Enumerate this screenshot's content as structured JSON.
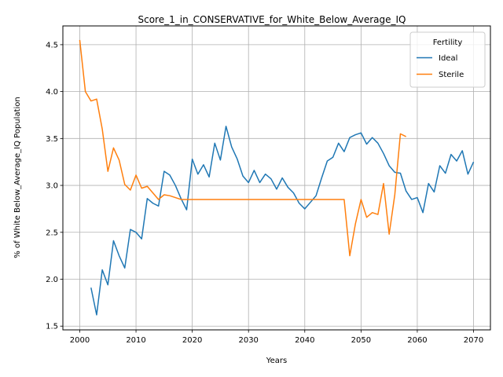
{
  "chart_data": {
    "type": "line",
    "title": "Score_1_in_CONSERVATIVE_for_White_Below_Average_IQ",
    "xlabel": "Years",
    "ylabel": "% of White Below_Average_IQ Population",
    "xlim": [
      1997,
      2073
    ],
    "ylim": [
      1.46,
      4.7
    ],
    "xticks": [
      2000,
      2010,
      2020,
      2030,
      2040,
      2050,
      2060,
      2070
    ],
    "yticks": [
      1.5,
      2.0,
      2.5,
      3.0,
      3.5,
      4.0,
      4.5
    ],
    "ytick_labels": [
      "1.5",
      "2.0",
      "2.5",
      "3.0",
      "3.5",
      "4.0",
      "4.5"
    ],
    "grid": true,
    "legend": {
      "title": "Fertility",
      "placement": "top-right"
    },
    "series": [
      {
        "name": "Ideal",
        "color": "#1f77b4",
        "points": [
          [
            2002,
            1.91
          ],
          [
            2003,
            1.62
          ],
          [
            2004,
            2.1
          ],
          [
            2005,
            1.94
          ],
          [
            2006,
            2.41
          ],
          [
            2007,
            2.25
          ],
          [
            2008,
            2.12
          ],
          [
            2009,
            2.53
          ],
          [
            2010,
            2.5
          ],
          [
            2011,
            2.43
          ],
          [
            2012,
            2.86
          ],
          [
            2013,
            2.81
          ],
          [
            2014,
            2.78
          ],
          [
            2015,
            3.15
          ],
          [
            2016,
            3.11
          ],
          [
            2017,
            3.0
          ],
          [
            2018,
            2.86
          ],
          [
            2019,
            2.74
          ],
          [
            2020,
            3.28
          ],
          [
            2021,
            3.12
          ],
          [
            2022,
            3.22
          ],
          [
            2023,
            3.09
          ],
          [
            2024,
            3.45
          ],
          [
            2025,
            3.27
          ],
          [
            2026,
            3.63
          ],
          [
            2027,
            3.41
          ],
          [
            2028,
            3.28
          ],
          [
            2029,
            3.1
          ],
          [
            2030,
            3.03
          ],
          [
            2031,
            3.16
          ],
          [
            2032,
            3.03
          ],
          [
            2033,
            3.12
          ],
          [
            2034,
            3.07
          ],
          [
            2035,
            2.96
          ],
          [
            2036,
            3.08
          ],
          [
            2037,
            2.98
          ],
          [
            2038,
            2.92
          ],
          [
            2039,
            2.81
          ],
          [
            2040,
            2.75
          ],
          [
            2041,
            2.82
          ],
          [
            2042,
            2.89
          ],
          [
            2043,
            3.08
          ],
          [
            2044,
            3.26
          ],
          [
            2045,
            3.3
          ],
          [
            2046,
            3.45
          ],
          [
            2047,
            3.36
          ],
          [
            2048,
            3.51
          ],
          [
            2049,
            3.54
          ],
          [
            2050,
            3.56
          ],
          [
            2051,
            3.44
          ],
          [
            2052,
            3.51
          ],
          [
            2053,
            3.45
          ],
          [
            2054,
            3.34
          ],
          [
            2055,
            3.21
          ],
          [
            2056,
            3.14
          ],
          [
            2057,
            3.13
          ],
          [
            2058,
            2.94
          ],
          [
            2059,
            2.85
          ],
          [
            2060,
            2.87
          ],
          [
            2061,
            2.71
          ],
          [
            2062,
            3.02
          ],
          [
            2063,
            2.93
          ],
          [
            2064,
            3.21
          ],
          [
            2065,
            3.13
          ],
          [
            2066,
            3.33
          ],
          [
            2067,
            3.26
          ],
          [
            2068,
            3.37
          ],
          [
            2069,
            3.12
          ],
          [
            2070,
            3.25
          ]
        ]
      },
      {
        "name": "Sterile",
        "color": "#ff7f0e",
        "points": [
          [
            2000,
            4.55
          ],
          [
            2001,
            4.0
          ],
          [
            2002,
            3.9
          ],
          [
            2003,
            3.92
          ],
          [
            2004,
            3.6
          ],
          [
            2005,
            3.15
          ],
          [
            2006,
            3.4
          ],
          [
            2007,
            3.27
          ],
          [
            2008,
            3.01
          ],
          [
            2009,
            2.95
          ],
          [
            2010,
            3.11
          ],
          [
            2011,
            2.97
          ],
          [
            2012,
            2.99
          ],
          [
            2013,
            2.92
          ],
          [
            2014,
            2.85
          ],
          [
            2015,
            2.9
          ],
          [
            2016,
            2.89
          ],
          [
            2017,
            2.87
          ],
          [
            2018,
            2.85
          ],
          [
            2019,
            2.85
          ],
          [
            2020,
            2.85
          ],
          [
            2021,
            2.85
          ],
          [
            2022,
            2.85
          ],
          [
            2023,
            2.85
          ],
          [
            2024,
            2.85
          ],
          [
            2025,
            2.85
          ],
          [
            2026,
            2.85
          ],
          [
            2027,
            2.85
          ],
          [
            2028,
            2.85
          ],
          [
            2029,
            2.85
          ],
          [
            2030,
            2.85
          ],
          [
            2031,
            2.85
          ],
          [
            2032,
            2.85
          ],
          [
            2033,
            2.85
          ],
          [
            2034,
            2.85
          ],
          [
            2035,
            2.85
          ],
          [
            2036,
            2.85
          ],
          [
            2037,
            2.85
          ],
          [
            2038,
            2.85
          ],
          [
            2039,
            2.85
          ],
          [
            2040,
            2.85
          ],
          [
            2041,
            2.85
          ],
          [
            2042,
            2.85
          ],
          [
            2043,
            2.85
          ],
          [
            2044,
            2.85
          ],
          [
            2045,
            2.85
          ],
          [
            2046,
            2.85
          ],
          [
            2047,
            2.85
          ],
          [
            2048,
            2.25
          ],
          [
            2049,
            2.59
          ],
          [
            2050,
            2.85
          ],
          [
            2051,
            2.66
          ],
          [
            2052,
            2.71
          ],
          [
            2053,
            2.69
          ],
          [
            2054,
            3.02
          ],
          [
            2055,
            2.48
          ],
          [
            2056,
            2.9
          ],
          [
            2057,
            3.55
          ],
          [
            2058,
            3.52
          ]
        ]
      }
    ]
  }
}
